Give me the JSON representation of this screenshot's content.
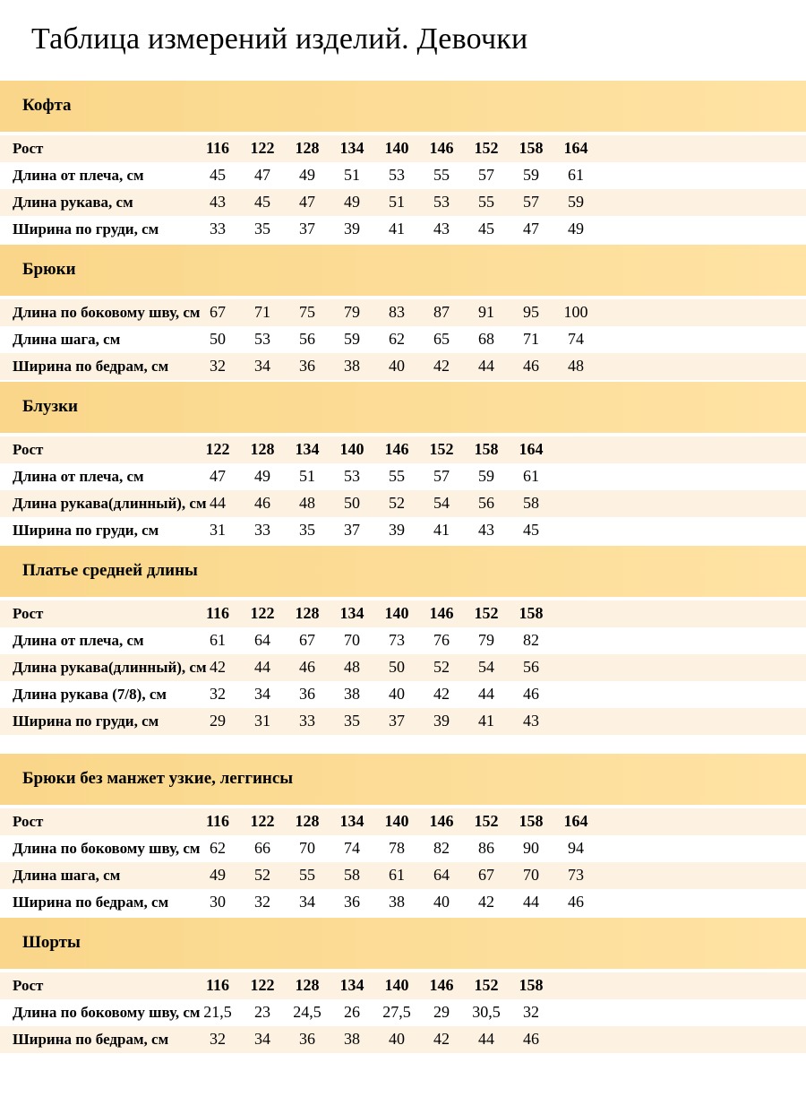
{
  "title": "Таблица измерений изделий. Девочки",
  "colors": {
    "band_yellow_left": "#f9d689",
    "band_yellow_right": "#ffe3a5",
    "row_cream": "#fdf1e1",
    "row_white": "#ffffff",
    "text": "#000000"
  },
  "sections": [
    {
      "name": "Кофта",
      "rows": [
        {
          "label": "Рост",
          "bold": true,
          "values": [
            "116",
            "122",
            "128",
            "134",
            "140",
            "146",
            "152",
            "158",
            "164"
          ]
        },
        {
          "label": "Длина от плеча, см",
          "values": [
            "45",
            "47",
            "49",
            "51",
            "53",
            "55",
            "57",
            "59",
            "61"
          ]
        },
        {
          "label": "Длина рукава, см",
          "values": [
            "43",
            "45",
            "47",
            "49",
            "51",
            "53",
            "55",
            "57",
            "59"
          ]
        },
        {
          "label": "Ширина по груди, см",
          "values": [
            "33",
            "35",
            "37",
            "39",
            "41",
            "43",
            "45",
            "47",
            "49"
          ]
        }
      ]
    },
    {
      "name": "Брюки",
      "rows": [
        {
          "label": "Длина по боковому шву, см",
          "values": [
            "67",
            "71",
            "75",
            "79",
            "83",
            "87",
            "91",
            "95",
            "100"
          ]
        },
        {
          "label": "Длина шага, см",
          "values": [
            "50",
            "53",
            "56",
            "59",
            "62",
            "65",
            "68",
            "71",
            "74"
          ]
        },
        {
          "label": "Ширина по бедрам, см",
          "values": [
            "32",
            "34",
            "36",
            "38",
            "40",
            "42",
            "44",
            "46",
            "48"
          ]
        }
      ]
    },
    {
      "name": "Блузки",
      "rows": [
        {
          "label": "Рост",
          "bold": true,
          "values": [
            "122",
            "128",
            "134",
            "140",
            "146",
            "152",
            "158",
            "164"
          ]
        },
        {
          "label": "Длина от плеча, см",
          "values": [
            "47",
            "49",
            "51",
            "53",
            "55",
            "57",
            "59",
            "61"
          ]
        },
        {
          "label": "Длина рукава(длинный), см",
          "values": [
            "44",
            "46",
            "48",
            "50",
            "52",
            "54",
            "56",
            "58"
          ]
        },
        {
          "label": "Ширина по груди, см",
          "values": [
            "31",
            "33",
            "35",
            "37",
            "39",
            "41",
            "43",
            "45"
          ]
        }
      ]
    },
    {
      "name": "Платье средней длины",
      "extra_gap_after": true,
      "rows": [
        {
          "label": "Рост",
          "bold": true,
          "values": [
            "116",
            "122",
            "128",
            "134",
            "140",
            "146",
            "152",
            "158"
          ]
        },
        {
          "label": "Длина от плеча, см",
          "values": [
            "61",
            "64",
            "67",
            "70",
            "73",
            "76",
            "79",
            "82"
          ]
        },
        {
          "label": "Длина рукава(длинный), см",
          "values": [
            "42",
            "44",
            "46",
            "48",
            "50",
            "52",
            "54",
            "56"
          ]
        },
        {
          "label": "Длина рукава (7/8), см",
          "values": [
            "32",
            "34",
            "36",
            "38",
            "40",
            "42",
            "44",
            "46"
          ]
        },
        {
          "label": "Ширина по груди, см",
          "values": [
            "29",
            "31",
            "33",
            "35",
            "37",
            "39",
            "41",
            "43"
          ]
        }
      ]
    },
    {
      "name": "Брюки без манжет узкие, леггинсы",
      "rows": [
        {
          "label": "Рост",
          "bold": true,
          "values": [
            "116",
            "122",
            "128",
            "134",
            "140",
            "146",
            "152",
            "158",
            "164"
          ]
        },
        {
          "label": "Длина по боковому шву, см",
          "values": [
            "62",
            "66",
            "70",
            "74",
            "78",
            "82",
            "86",
            "90",
            "94"
          ]
        },
        {
          "label": "Длина шага, см",
          "values": [
            "49",
            "52",
            "55",
            "58",
            "61",
            "64",
            "67",
            "70",
            "73"
          ]
        },
        {
          "label": "Ширина по бедрам, см",
          "values": [
            "30",
            "32",
            "34",
            "36",
            "38",
            "40",
            "42",
            "44",
            "46"
          ]
        }
      ]
    },
    {
      "name": "Шорты",
      "rows": [
        {
          "label": "Рост",
          "bold": true,
          "values": [
            "116",
            "122",
            "128",
            "134",
            "140",
            "146",
            "152",
            "158"
          ]
        },
        {
          "label": "Длина по боковому шву, см",
          "values": [
            "21,5",
            "23",
            "24,5",
            "26",
            "27,5",
            "29",
            "30,5",
            "32"
          ]
        },
        {
          "label": "Ширина по бедрам, см",
          "values": [
            "32",
            "34",
            "36",
            "38",
            "40",
            "42",
            "44",
            "46"
          ]
        }
      ]
    }
  ]
}
